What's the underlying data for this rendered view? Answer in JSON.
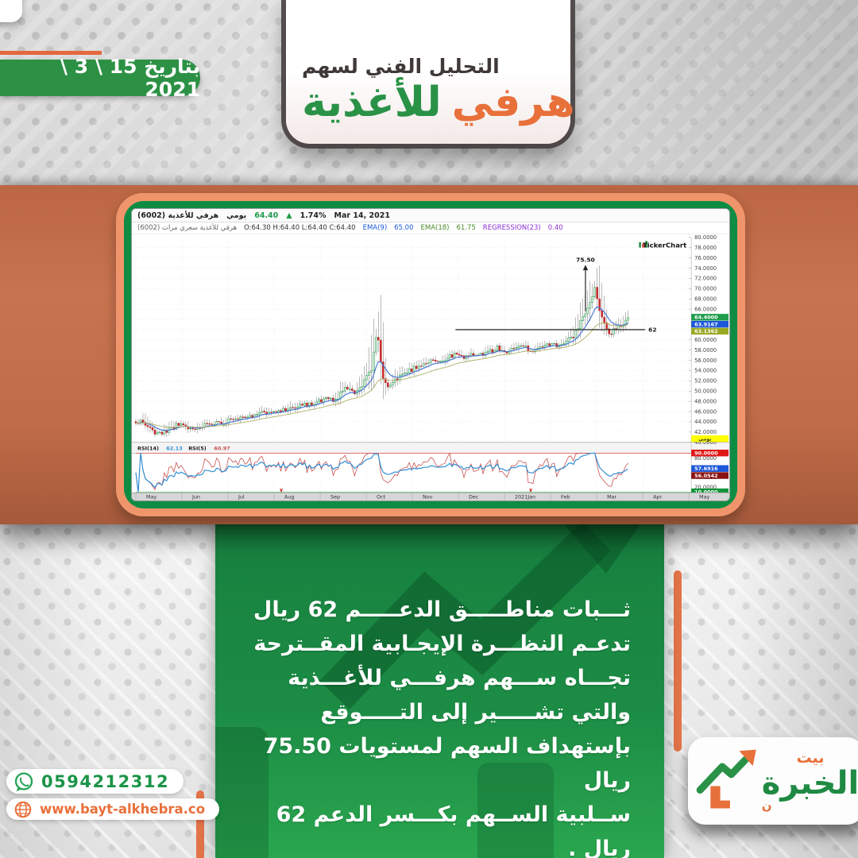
{
  "header": {
    "date": "بتاريخ 15 \\ 3 \\ 2021",
    "title_small": "التحليل الفني لسهم",
    "title_word1": "هرفي",
    "title_word2": "للأغذية"
  },
  "chart": {
    "info1": {
      "name": "هرفي للأغذية (6002)",
      "period": "يومي",
      "price": "64.40",
      "arrow": "▲",
      "change": "1.74%",
      "date": "Mar 14, 2021"
    },
    "info2": {
      "series": "هرفي للأغذية سعري مرات (6002)",
      "ohlc": "O:64.30  H:64.40  L:64.40  C:64.40",
      "ema1_label": "EMA(9)",
      "ema1": "65.00",
      "ema2_label": "EMA(18)",
      "ema2": "61.75",
      "reg_label": "REGRESSION(23)",
      "reg": "0.40"
    }
  },
  "analysis": {
    "lines": [
      "ثـــبات مناطـــــق الدعـــــم 62 ريال",
      "تدعـم النظـــرة الإيجـابية المقــترحة",
      "تجـــاه ســـهم هرفـــي للأغـــذية",
      "والتي تشـــــير إلى التـــــوقع",
      "بإستهداف السهم لمستويات 75.50 ريال",
      "ســلبية الســهم بكـــسر الدعم 62 ريال ."
    ]
  },
  "contact": {
    "phone": "0594212312",
    "website": "www.bayt-alkhebra.co"
  },
  "logo": {
    "word_top": "بيت",
    "word_main": "الخبرة",
    "small_letter": "ن"
  },
  "chart_data": {
    "type": "candlestick",
    "watermark": "TickerChart",
    "title": "هرفي للأغذية (6002) يومي",
    "last": 64.4,
    "ylim": [
      40,
      80
    ],
    "y_step": 2,
    "rsi_lim": [
      10,
      90
    ],
    "months": [
      "May",
      "Jun",
      "Jul",
      "Aug",
      "Sep",
      "Oct",
      "Nov",
      "Dec",
      "2021Jan",
      "Feb",
      "Mar",
      "Apr",
      "May"
    ],
    "bars": 208,
    "data_end_frac": 0.89,
    "price_keypoints": [
      [
        0.0,
        43.6
      ],
      [
        0.012,
        44.2
      ],
      [
        0.02,
        43.0
      ],
      [
        0.03,
        42.2
      ],
      [
        0.045,
        41.6
      ],
      [
        0.06,
        42.6
      ],
      [
        0.075,
        43.4
      ],
      [
        0.09,
        43.0
      ],
      [
        0.105,
        42.4
      ],
      [
        0.12,
        43.2
      ],
      [
        0.135,
        44.0
      ],
      [
        0.15,
        43.6
      ],
      [
        0.165,
        44.3
      ],
      [
        0.18,
        44.8
      ],
      [
        0.2,
        45.3
      ],
      [
        0.215,
        45.0
      ],
      [
        0.23,
        45.8
      ],
      [
        0.25,
        46.4
      ],
      [
        0.27,
        46.2
      ],
      [
        0.285,
        47.0
      ],
      [
        0.3,
        47.6
      ],
      [
        0.315,
        47.3
      ],
      [
        0.33,
        47.9
      ],
      [
        0.345,
        48.3
      ],
      [
        0.36,
        48.1
      ],
      [
        0.372,
        49.6
      ],
      [
        0.38,
        50.8
      ],
      [
        0.388,
        50.2
      ],
      [
        0.395,
        49.4
      ],
      [
        0.405,
        50.6
      ],
      [
        0.415,
        52.2
      ],
      [
        0.425,
        54.0
      ],
      [
        0.431,
        58.5
      ],
      [
        0.436,
        61.8
      ],
      [
        0.441,
        57.5
      ],
      [
        0.447,
        52.5
      ],
      [
        0.455,
        50.8
      ],
      [
        0.465,
        51.6
      ],
      [
        0.475,
        52.8
      ],
      [
        0.49,
        53.8
      ],
      [
        0.505,
        54.6
      ],
      [
        0.52,
        55.4
      ],
      [
        0.535,
        56.2
      ],
      [
        0.55,
        55.6
      ],
      [
        0.565,
        56.6
      ],
      [
        0.58,
        57.2
      ],
      [
        0.595,
        56.4
      ],
      [
        0.61,
        57.4
      ],
      [
        0.625,
        57.0
      ],
      [
        0.64,
        57.8
      ],
      [
        0.655,
        58.4
      ],
      [
        0.67,
        57.6
      ],
      [
        0.685,
        58.2
      ],
      [
        0.7,
        58.8
      ],
      [
        0.715,
        57.8
      ],
      [
        0.73,
        58.6
      ],
      [
        0.745,
        59.2
      ],
      [
        0.76,
        59.0
      ],
      [
        0.775,
        59.6
      ],
      [
        0.79,
        60.6
      ],
      [
        0.8,
        62.4
      ],
      [
        0.81,
        64.6
      ],
      [
        0.818,
        66.4
      ],
      [
        0.825,
        67.8
      ],
      [
        0.831,
        70.8
      ],
      [
        0.836,
        67.0
      ],
      [
        0.843,
        64.2
      ],
      [
        0.852,
        61.8
      ],
      [
        0.86,
        61.2
      ],
      [
        0.868,
        62.2
      ],
      [
        0.876,
        62.8
      ],
      [
        0.883,
        63.4
      ],
      [
        0.89,
        64.4
      ]
    ],
    "price_ticks": [
      80,
      78,
      76,
      74,
      72,
      70,
      68,
      66,
      60,
      58,
      56,
      54,
      52,
      50,
      48,
      46,
      44,
      42,
      40
    ],
    "price_chips": [
      {
        "label": "64.4000",
        "color": "#1f9d4d"
      },
      {
        "label": "63.9167",
        "color": "#1c57d9"
      },
      {
        "label": "63.1362",
        "color": "#9aa821"
      }
    ],
    "daily_chip": "يومي",
    "rsi_header": [
      [
        "RSI(14)",
        "#222222"
      ],
      [
        "62.13",
        "#2f8fd6"
      ],
      [
        "RSI(5)",
        "#222222"
      ],
      [
        "60.97",
        "#c85050"
      ]
    ],
    "rsi_plain": [
      80,
      40,
      20
    ],
    "rsi_chips": [
      {
        "label": "90.0000",
        "color": "#e01717",
        "y": 277.5
      },
      {
        "label": "57.6916",
        "color": "#1c57d9",
        "y": 297.5
      },
      {
        "label": "56.0542",
        "color": "#8a1212",
        "y": 306.5
      },
      {
        "label": "10.0000",
        "color": "#12953a",
        "y": 327.5
      }
    ],
    "annotations": {
      "support_level": 62,
      "support_label": "62",
      "support_from_frac": 0.578,
      "support_to_frac": 0.921,
      "target_label": "75.50",
      "target_x_frac": 0.813,
      "arrow_from": 65.6,
      "arrow_to": 73.6
    },
    "event_marks_frac": [
      0.263,
      0.714
    ]
  }
}
